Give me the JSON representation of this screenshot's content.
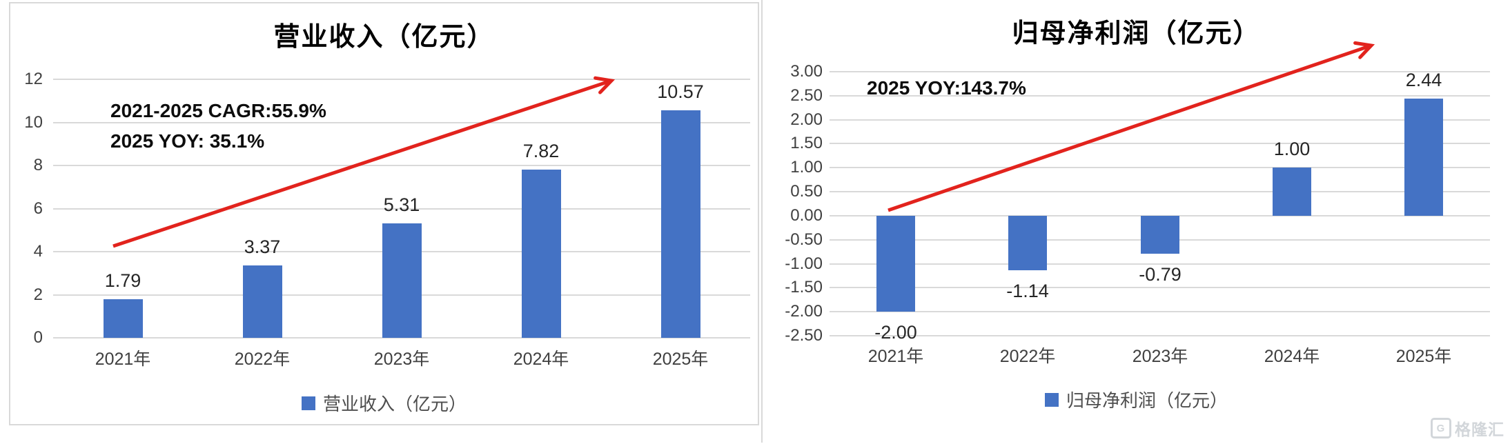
{
  "watermark": {
    "logo_glyph": "G",
    "brand_text": "格隆汇"
  },
  "chart_data": [
    {
      "type": "bar",
      "title": "营业收入（亿元）",
      "annotations": [
        "2021-2025  CAGR:55.9%",
        "2025 YOY: 35.1%"
      ],
      "categories": [
        "2021年",
        "2022年",
        "2023年",
        "2024年",
        "2025年"
      ],
      "values": [
        1.79,
        3.37,
        5.31,
        7.82,
        10.57
      ],
      "value_labels": [
        "1.79",
        "3.37",
        "5.31",
        "7.82",
        "10.57"
      ],
      "xlabel": "",
      "ylabel": "",
      "ylim": [
        0,
        12
      ],
      "ytick_labels": [
        "12",
        "10",
        "8",
        "6",
        "4",
        "2",
        "0"
      ],
      "grid": true,
      "legend": "营业收入（亿元）",
      "legend_position": "bottom",
      "bar_color": "#4472C4",
      "grid_color": "#D9D9D9",
      "arrow_color": "#E2231D",
      "trend_annotation": "red-up-arrow"
    },
    {
      "type": "bar",
      "title": "归母净利润（亿元）",
      "annotations": [
        "2025 YOY:143.7%"
      ],
      "categories": [
        "2021年",
        "2022年",
        "2023年",
        "2024年",
        "2025年"
      ],
      "values": [
        -2.0,
        -1.14,
        -0.79,
        1.0,
        2.44
      ],
      "value_labels": [
        "-2.00",
        "-1.14",
        "-0.79",
        "1.00",
        "2.44"
      ],
      "xlabel": "",
      "ylabel": "",
      "ylim": [
        -2.5,
        3.0
      ],
      "ytick_labels": [
        "3.00",
        "2.50",
        "2.00",
        "1.50",
        "1.00",
        "0.50",
        "0.00",
        "-0.50",
        "-1.00",
        "-1.50",
        "-2.00",
        "-2.50"
      ],
      "grid": true,
      "legend": "归母净利润（亿元）",
      "legend_position": "bottom",
      "bar_color": "#4472C4",
      "grid_color": "#D9D9D9",
      "arrow_color": "#E2231D",
      "trend_annotation": "red-up-arrow"
    }
  ]
}
